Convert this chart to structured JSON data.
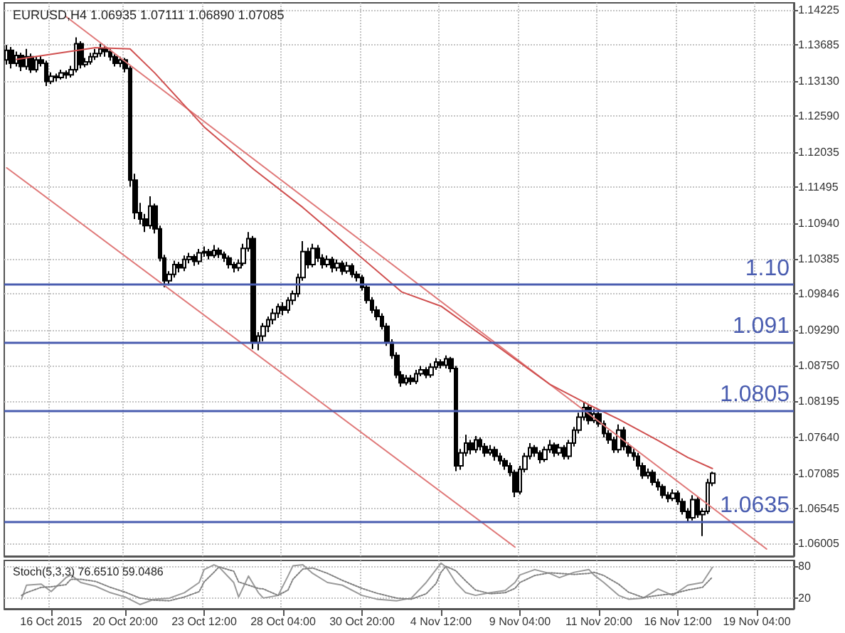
{
  "chart_data": [
    {
      "type": "candlestick",
      "title": "EURUSD,H4 1.06935 1.07111 1.06890 1.07085",
      "color": "#000000",
      "ohlc": [
        [
          1.1345,
          1.1368,
          1.1338,
          1.136
        ],
        [
          1.136,
          1.1365,
          1.1332,
          1.134
        ],
        [
          1.134,
          1.1358,
          1.1335,
          1.1352
        ],
        [
          1.1352,
          1.1356,
          1.1328,
          1.1335
        ],
        [
          1.1335,
          1.1362,
          1.133,
          1.135
        ],
        [
          1.135,
          1.1355,
          1.1325,
          1.133
        ],
        [
          1.133,
          1.135,
          1.1326,
          1.1345
        ],
        [
          1.1345,
          1.1352,
          1.1335,
          1.134
        ],
        [
          1.134,
          1.1344,
          1.1305,
          1.1312
        ],
        [
          1.1312,
          1.1326,
          1.1308,
          1.132
        ],
        [
          1.132,
          1.1324,
          1.1312,
          1.1318
        ],
        [
          1.1318,
          1.133,
          1.1315,
          1.1325
        ],
        [
          1.1325,
          1.1329,
          1.1316,
          1.1322
        ],
        [
          1.1322,
          1.1336,
          1.1318,
          1.133
        ],
        [
          1.133,
          1.138,
          1.1326,
          1.137
        ],
        [
          1.137,
          1.1374,
          1.1332,
          1.1338
        ],
        [
          1.1338,
          1.1348,
          1.1334,
          1.1342
        ],
        [
          1.1342,
          1.1356,
          1.1338,
          1.135
        ],
        [
          1.135,
          1.1362,
          1.1345,
          1.1355
        ],
        [
          1.1355,
          1.137,
          1.135,
          1.1362
        ],
        [
          1.1362,
          1.1366,
          1.135,
          1.1358
        ],
        [
          1.1358,
          1.1362,
          1.1344,
          1.135
        ],
        [
          1.135,
          1.1354,
          1.1335,
          1.134
        ],
        [
          1.134,
          1.135,
          1.1334,
          1.1345
        ],
        [
          1.1345,
          1.1348,
          1.1326,
          1.1332
        ],
        [
          1.1332,
          1.1336,
          1.115,
          1.116
        ],
        [
          1.116,
          1.117,
          1.11,
          1.111
        ],
        [
          1.111,
          1.1125,
          1.1092,
          1.11
        ],
        [
          1.11,
          1.1108,
          1.108,
          1.109
        ],
        [
          1.109,
          1.1135,
          1.1085,
          1.112
        ],
        [
          1.112,
          1.1124,
          1.1078,
          1.1085
        ],
        [
          1.1085,
          1.109,
          1.1035,
          1.104
        ],
        [
          1.104,
          1.1045,
          1.0995,
          1.1005
        ],
        [
          1.1005,
          1.102,
          1.0998,
          1.1015
        ],
        [
          1.1015,
          1.1036,
          1.101,
          1.103
        ],
        [
          1.103,
          1.1034,
          1.1018,
          1.1025
        ],
        [
          1.1025,
          1.1044,
          1.102,
          1.1038
        ],
        [
          1.1038,
          1.1048,
          1.1032,
          1.1042
        ],
        [
          1.1042,
          1.1046,
          1.1028,
          1.1035
        ],
        [
          1.1035,
          1.1054,
          1.103,
          1.1048
        ],
        [
          1.1048,
          1.1058,
          1.1042,
          1.105
        ],
        [
          1.105,
          1.1054,
          1.1038,
          1.1044
        ],
        [
          1.1044,
          1.106,
          1.104,
          1.1052
        ],
        [
          1.1052,
          1.1056,
          1.104,
          1.1046
        ],
        [
          1.1046,
          1.105,
          1.1034,
          1.104
        ],
        [
          1.104,
          1.1044,
          1.1024,
          1.103
        ],
        [
          1.103,
          1.1034,
          1.1018,
          1.1025
        ],
        [
          1.1025,
          1.1038,
          1.102,
          1.1032
        ],
        [
          1.1032,
          1.1062,
          1.1028,
          1.1055
        ],
        [
          1.1055,
          1.108,
          1.105,
          1.107
        ],
        [
          1.107,
          1.1074,
          1.09,
          1.091
        ],
        [
          1.091,
          1.0926,
          1.0898,
          1.092
        ],
        [
          1.092,
          1.094,
          1.0912,
          1.0935
        ],
        [
          1.0935,
          1.095,
          1.0926,
          1.0945
        ],
        [
          1.0945,
          1.0962,
          1.0938,
          1.0955
        ],
        [
          1.0955,
          1.097,
          1.0948,
          1.0965
        ],
        [
          1.0965,
          1.0972,
          1.0952,
          1.096
        ],
        [
          1.096,
          1.098,
          1.0955,
          1.0975
        ],
        [
          1.0975,
          1.099,
          1.0968,
          1.0985
        ],
        [
          1.0985,
          1.1016,
          1.098,
          1.101
        ],
        [
          1.101,
          1.1066,
          1.1005,
          1.105
        ],
        [
          1.105,
          1.1056,
          1.1024,
          1.103
        ],
        [
          1.103,
          1.1062,
          1.1026,
          1.1055
        ],
        [
          1.1055,
          1.106,
          1.1034,
          1.104
        ],
        [
          1.104,
          1.1046,
          1.1024,
          1.103
        ],
        [
          1.103,
          1.1044,
          1.1026,
          1.1038
        ],
        [
          1.1038,
          1.1042,
          1.1018,
          1.1025
        ],
        [
          1.1025,
          1.1038,
          1.102,
          1.1032
        ],
        [
          1.1032,
          1.1036,
          1.1014,
          1.102
        ],
        [
          1.102,
          1.1034,
          1.1016,
          1.1028
        ],
        [
          1.1028,
          1.1032,
          1.101,
          1.1015
        ],
        [
          1.1015,
          1.102,
          1.1004,
          1.101
        ],
        [
          1.101,
          1.1014,
          1.099,
          1.0995
        ],
        [
          1.0995,
          1.1,
          1.097,
          1.0975
        ],
        [
          1.0975,
          1.098,
          1.0955,
          1.096
        ],
        [
          1.096,
          1.0966,
          1.0944,
          1.095
        ],
        [
          1.095,
          1.0955,
          1.093,
          1.0935
        ],
        [
          1.0935,
          1.094,
          1.0905,
          1.091
        ],
        [
          1.091,
          1.0915,
          1.0885,
          1.089
        ],
        [
          1.089,
          1.0895,
          1.0855,
          1.086
        ],
        [
          1.086,
          1.0866,
          1.0842,
          1.0848
        ],
        [
          1.0848,
          1.086,
          1.0844,
          1.0855
        ],
        [
          1.0855,
          1.086,
          1.0845,
          1.085
        ],
        [
          1.085,
          1.0868,
          1.0846,
          1.0862
        ],
        [
          1.0862,
          1.0874,
          1.0858,
          1.0868
        ],
        [
          1.0868,
          1.0872,
          1.0855,
          1.086
        ],
        [
          1.086,
          1.0878,
          1.0856,
          1.0872
        ],
        [
          1.0872,
          1.0886,
          1.0868,
          1.088
        ],
        [
          1.088,
          1.0884,
          1.087,
          1.0875
        ],
        [
          1.0875,
          1.089,
          1.087,
          1.0885
        ],
        [
          1.0885,
          1.0888,
          1.0864,
          1.087
        ],
        [
          1.087,
          1.0874,
          1.0712,
          1.072
        ],
        [
          1.072,
          1.0746,
          1.0714,
          1.074
        ],
        [
          1.074,
          1.0768,
          1.0735,
          1.0755
        ],
        [
          1.0755,
          1.076,
          1.0738,
          1.0745
        ],
        [
          1.0745,
          1.0766,
          1.074,
          1.076
        ],
        [
          1.076,
          1.0764,
          1.0744,
          1.075
        ],
        [
          1.075,
          1.0755,
          1.0734,
          1.074
        ],
        [
          1.074,
          1.0752,
          1.0736,
          1.0745
        ],
        [
          1.0745,
          1.075,
          1.0728,
          1.0735
        ],
        [
          1.0735,
          1.074,
          1.0722,
          1.0728
        ],
        [
          1.0728,
          1.0732,
          1.0714,
          1.072
        ],
        [
          1.072,
          1.0725,
          1.0704,
          1.071
        ],
        [
          1.071,
          1.0714,
          1.0672,
          1.068
        ],
        [
          1.068,
          1.072,
          1.0676,
          1.0715
        ],
        [
          1.0715,
          1.074,
          1.071,
          1.0735
        ],
        [
          1.0735,
          1.0755,
          1.073,
          1.0748
        ],
        [
          1.0748,
          1.0752,
          1.0734,
          1.074
        ],
        [
          1.074,
          1.0744,
          1.0724,
          1.073
        ],
        [
          1.073,
          1.075,
          1.0726,
          1.0745
        ],
        [
          1.0745,
          1.076,
          1.074,
          1.0752
        ],
        [
          1.0752,
          1.0756,
          1.0734,
          1.074
        ],
        [
          1.074,
          1.0754,
          1.0736,
          1.0748
        ],
        [
          1.0748,
          1.0752,
          1.073,
          1.0735
        ],
        [
          1.0735,
          1.076,
          1.073,
          1.0755
        ],
        [
          1.0755,
          1.078,
          1.075,
          1.0775
        ],
        [
          1.0775,
          1.0802,
          1.077,
          1.0795
        ],
        [
          1.0795,
          1.0818,
          1.079,
          1.081
        ],
        [
          1.081,
          1.0814,
          1.0784,
          1.079
        ],
        [
          1.079,
          1.0808,
          1.0786,
          1.08
        ],
        [
          1.08,
          1.0806,
          1.078,
          1.0785
        ],
        [
          1.0785,
          1.079,
          1.0764,
          1.077
        ],
        [
          1.077,
          1.0775,
          1.0754,
          1.076
        ],
        [
          1.076,
          1.0765,
          1.074,
          1.0745
        ],
        [
          1.0745,
          1.0784,
          1.074,
          1.0775
        ],
        [
          1.0775,
          1.078,
          1.0744,
          1.075
        ],
        [
          1.075,
          1.0756,
          1.0734,
          1.074
        ],
        [
          1.074,
          1.0746,
          1.0728,
          1.0735
        ],
        [
          1.0735,
          1.074,
          1.0714,
          1.072
        ],
        [
          1.072,
          1.0725,
          1.07,
          1.0705
        ],
        [
          1.0705,
          1.0716,
          1.07,
          1.071
        ],
        [
          1.071,
          1.0714,
          1.069,
          1.0695
        ],
        [
          1.0695,
          1.07,
          1.0682,
          1.0688
        ],
        [
          1.0688,
          1.0692,
          1.067,
          1.0675
        ],
        [
          1.0675,
          1.068,
          1.0664,
          1.067
        ],
        [
          1.067,
          1.0684,
          1.0666,
          1.0678
        ],
        [
          1.0678,
          1.0682,
          1.066,
          1.0665
        ],
        [
          1.0665,
          1.067,
          1.0645,
          1.065
        ],
        [
          1.065,
          1.0655,
          1.0634,
          1.064
        ],
        [
          1.064,
          1.0675,
          1.0636,
          1.0668
        ],
        [
          1.0668,
          1.0672,
          1.064,
          1.0645
        ],
        [
          1.0645,
          1.0655,
          1.0612,
          1.065
        ],
        [
          1.065,
          1.07,
          1.0646,
          1.0694
        ],
        [
          1.06935,
          1.07111,
          1.0689,
          1.07085
        ],
        null,
        null,
        null,
        null,
        null,
        null,
        null,
        null,
        null,
        null,
        null,
        null,
        null,
        null,
        null,
        null
      ],
      "series": [
        {
          "type": "line",
          "color": "#e07a7a",
          "values": [
            null,
            null,
            null,
            null,
            null,
            null,
            null,
            null,
            null,
            null,
            null,
            null,
            1.1412,
            null,
            null,
            null,
            null,
            null,
            null,
            null,
            null,
            null,
            null,
            null,
            null,
            null,
            null,
            null,
            null,
            null,
            null,
            null,
            null,
            null,
            null,
            null,
            null,
            null,
            null,
            null,
            null,
            null,
            null,
            null,
            null,
            null,
            null,
            null,
            null,
            null,
            null,
            null,
            null,
            null,
            null,
            null,
            null,
            null,
            null,
            null,
            null,
            null,
            null,
            null,
            null,
            null,
            null,
            null,
            null,
            null,
            null,
            null,
            null,
            null,
            null,
            null,
            null,
            null,
            null,
            null,
            null,
            null,
            null,
            null,
            null,
            null,
            null,
            null,
            null,
            null,
            null,
            null,
            null,
            null,
            null,
            null,
            null,
            null,
            null,
            null,
            null,
            null,
            null,
            null,
            null,
            null,
            null,
            null,
            null,
            null,
            null,
            null,
            null,
            null,
            null,
            null,
            null,
            null,
            null,
            null,
            null,
            null,
            null,
            null,
            null,
            null,
            null,
            null,
            null,
            null,
            null,
            null,
            null,
            null,
            null,
            null,
            null,
            null,
            null,
            null,
            null,
            null,
            null,
            null,
            null,
            null,
            null,
            null,
            null,
            null,
            null,
            null,
            null,
            null,
            1.0592,
            null,
            null,
            null,
            null,
            null
          ]
        },
        {
          "type": "line",
          "color": "#e07a7a",
          "values": [
            1.1179,
            null,
            null,
            null,
            null,
            null,
            null,
            null,
            null,
            null,
            null,
            null,
            null,
            null,
            null,
            null,
            null,
            null,
            null,
            null,
            null,
            null,
            null,
            null,
            null,
            null,
            null,
            null,
            null,
            null,
            null,
            null,
            null,
            null,
            null,
            null,
            null,
            null,
            null,
            null,
            null,
            null,
            null,
            null,
            null,
            null,
            null,
            null,
            null,
            null,
            null,
            null,
            null,
            null,
            null,
            null,
            null,
            null,
            null,
            null,
            null,
            null,
            null,
            null,
            null,
            null,
            null,
            null,
            null,
            null,
            null,
            null,
            null,
            null,
            null,
            null,
            null,
            null,
            null,
            null,
            null,
            null,
            null,
            null,
            null,
            null,
            null,
            null,
            null,
            null,
            null,
            null,
            null,
            null,
            null,
            null,
            null,
            null,
            null,
            null,
            null,
            null,
            null,
            1.0595,
            null,
            null,
            null,
            null,
            null,
            null,
            null,
            null,
            null,
            null,
            null,
            null,
            null,
            null,
            null,
            null,
            null,
            null,
            null,
            null,
            null,
            null,
            null,
            null,
            null,
            null,
            null,
            null,
            null,
            null,
            null,
            null,
            null,
            null,
            null,
            null,
            null,
            null,
            null,
            null,
            null,
            null,
            null,
            null,
            null,
            null,
            null,
            null,
            null,
            null,
            null,
            null,
            null,
            null,
            null,
            null
          ]
        },
        {
          "type": "line",
          "color": "#d05050",
          "values": [
            null,
            null,
            1.1346,
            null,
            null,
            null,
            null,
            null,
            null,
            null,
            1.1355,
            null,
            null,
            null,
            null,
            null,
            null,
            null,
            1.1364,
            null,
            null,
            null,
            null,
            null,
            null,
            1.1362,
            null,
            null,
            null,
            null,
            1.1325,
            null,
            null,
            null,
            null,
            null,
            null,
            null,
            null,
            null,
            1.1242,
            null,
            null,
            null,
            null,
            null,
            null,
            null,
            null,
            null,
            1.1177,
            null,
            null,
            null,
            null,
            null,
            null,
            null,
            null,
            null,
            1.1118,
            null,
            null,
            null,
            null,
            null,
            null,
            null,
            null,
            null,
            1.1053,
            null,
            null,
            null,
            null,
            null,
            null,
            null,
            null,
            null,
            1.0988,
            null,
            null,
            null,
            null,
            null,
            null,
            null,
            1.0966,
            null,
            null,
            null,
            null,
            null,
            null,
            null,
            null,
            null,
            null,
            null,
            1.0901,
            null,
            null,
            null,
            null,
            null,
            null,
            null,
            null,
            null,
            1.0846,
            null,
            null,
            null,
            null,
            null,
            null,
            null,
            1.0814,
            null,
            null,
            null,
            null,
            null,
            1.0792,
            null,
            null,
            null,
            null,
            null,
            null,
            null,
            1.0759,
            null,
            null,
            null,
            null,
            null,
            1.0733,
            null,
            null,
            null,
            null,
            1.0716,
            null,
            null,
            null,
            null,
            null,
            null,
            null,
            null,
            null,
            null,
            null,
            null,
            null,
            null,
            null,
            null
          ]
        }
      ],
      "marker": "none",
      "categories": [
        null,
        null,
        null,
        null,
        null,
        null,
        null,
        null,
        null,
        null,
        null,
        null,
        null,
        null,
        null,
        null,
        null,
        null,
        null,
        null,
        null,
        null,
        null,
        null,
        null,
        null,
        null,
        null,
        null,
        null,
        null,
        null,
        null,
        null,
        null,
        null,
        null,
        null,
        null,
        null,
        null,
        null,
        null,
        null,
        null,
        null,
        null,
        null,
        null,
        null,
        null,
        null,
        null,
        null,
        null,
        null,
        null,
        null,
        null,
        null,
        null,
        null,
        null,
        null,
        null,
        null,
        null,
        null,
        null,
        null,
        null,
        null,
        null,
        null,
        null,
        null,
        null,
        null,
        null,
        null,
        null,
        null,
        null,
        null,
        null,
        null,
        null,
        null,
        null,
        null,
        null,
        null,
        null,
        null,
        null,
        null,
        null,
        null,
        null,
        null,
        null,
        null,
        null,
        null,
        null,
        null,
        null,
        null,
        null,
        null,
        null,
        null,
        null,
        null,
        null,
        null,
        null,
        null,
        null,
        null,
        null,
        null,
        null,
        null,
        null,
        null,
        null,
        null,
        null,
        null,
        null,
        null,
        null,
        null,
        null,
        null,
        null,
        null,
        null,
        null,
        null,
        null,
        null,
        null,
        null,
        null,
        null,
        null,
        null,
        null,
        null,
        null,
        null,
        null,
        null,
        null,
        null,
        null,
        null,
        null
      ],
      "ylim": [
        1.0581,
        1.1433
      ],
      "yticks": [
        1.14225,
        1.13685,
        {
          "value": 1.1313,
          "label": "1.13130"
        },
        {
          "value": 1.1259,
          "label": "1.12590"
        },
        1.12035,
        1.11495,
        {
          "value": 1.1094,
          "label": "1.10940"
        },
        1.10385,
        1.09846,
        {
          "value": 1.0929,
          "label": "1.09290"
        },
        {
          "value": 1.0875,
          "label": "1.08750"
        },
        1.08195,
        {
          "value": 1.0764,
          "label": "1.07640"
        },
        1.07085,
        1.06545,
        1.06005
      ],
      "tick_labels": "y",
      "grid": true,
      "ref_lines": [
        {
          "axis": "y",
          "value": 1.09996,
          "label": "1.10",
          "color": "#4a5db0"
        },
        {
          "axis": "y",
          "value": 1.09102,
          "label": "1.091",
          "color": "#4a5db0"
        },
        {
          "axis": "y",
          "value": 1.08053,
          "label": "1.0805",
          "color": "#4a5db0"
        },
        {
          "axis": "y",
          "value": 1.06352,
          "label": "1.0635",
          "color": "#4a5db0"
        }
      ]
    },
    {
      "type": "line",
      "title": "Stoch(5,3,3) 76.6510 59.0486",
      "marker": "none",
      "grid": true,
      "series": [
        {
          "color": "#9a9a9a",
          "line_style": "solid",
          "values": [
            null,
            null,
            null,
            18,
            44,
            null,
            null,
            46,
            null,
            32,
            null,
            null,
            58,
            63,
            null,
            49,
            null,
            null,
            42,
            null,
            null,
            30,
            null,
            null,
            22,
            null,
            null,
            8,
            null,
            null,
            18,
            null,
            null,
            20,
            null,
            null,
            30,
            null,
            null,
            49,
            73,
            null,
            82,
            78,
            null,
            null,
            49,
            22,
            null,
            61,
            null,
            30,
            20,
            null,
            null,
            25,
            null,
            61,
            80,
            null,
            82,
            null,
            66,
            null,
            null,
            49,
            null,
            null,
            44,
            null,
            null,
            null,
            25,
            null,
            null,
            18,
            null,
            null,
            null,
            15,
            null,
            null,
            20,
            null,
            null,
            49,
            null,
            73,
            85,
            78,
            null,
            49,
            null,
            30,
            null,
            25,
            null,
            null,
            30,
            null,
            null,
            34,
            null,
            49,
            63,
            null,
            null,
            73,
            null,
            null,
            66,
            null,
            58,
            null,
            null,
            68,
            null,
            null,
            73,
            63,
            null,
            49,
            null,
            null,
            25,
            null,
            18,
            null,
            null,
            20,
            null,
            null,
            37,
            null,
            null,
            25,
            null,
            null,
            44,
            null,
            null,
            49,
            null,
            77,
            null,
            null,
            null,
            null,
            null,
            null,
            null,
            null,
            null,
            null,
            null,
            null,
            null,
            null,
            null,
            null
          ]
        },
        {
          "color": "#808080",
          "line_style": "dotted",
          "values": [
            null,
            null,
            null,
            25,
            30,
            null,
            null,
            40,
            null,
            41,
            null,
            null,
            45,
            55,
            null,
            55,
            null,
            null,
            51,
            null,
            null,
            40,
            null,
            null,
            31,
            null,
            null,
            20,
            null,
            null,
            16,
            null,
            null,
            15,
            null,
            null,
            22,
            null,
            null,
            32,
            50,
            null,
            68,
            78,
            null,
            null,
            70,
            50,
            null,
            44,
            null,
            38,
            37,
            null,
            null,
            25,
            null,
            35,
            55,
            null,
            74,
            null,
            76,
            null,
            null,
            66,
            null,
            null,
            53,
            null,
            null,
            null,
            38,
            null,
            null,
            29,
            null,
            null,
            null,
            20,
            null,
            null,
            18,
            null,
            null,
            28,
            null,
            47,
            68,
            79,
            null,
            71,
            null,
            52,
            null,
            35,
            null,
            null,
            28,
            null,
            null,
            30,
            null,
            38,
            49,
            null,
            null,
            62,
            null,
            null,
            67,
            null,
            66,
            null,
            null,
            64,
            null,
            null,
            66,
            68,
            null,
            62,
            null,
            null,
            46,
            null,
            31,
            null,
            null,
            21,
            null,
            null,
            25,
            null,
            null,
            28,
            null,
            null,
            35,
            null,
            null,
            40,
            null,
            59,
            null,
            null,
            null,
            null,
            null,
            null,
            null,
            null,
            null,
            null,
            null,
            null,
            null,
            null,
            null,
            null
          ]
        }
      ],
      "categories": [
        null,
        null,
        null,
        null,
        null,
        null,
        null,
        null,
        null,
        "16 Oct 2015",
        null,
        null,
        null,
        null,
        null,
        null,
        null,
        null,
        null,
        null,
        null,
        null,
        null,
        null,
        "20 Oct 20:00",
        null,
        null,
        null,
        null,
        null,
        null,
        null,
        null,
        null,
        null,
        null,
        null,
        null,
        null,
        null,
        "23 Oct 12:00",
        null,
        null,
        null,
        null,
        null,
        null,
        null,
        null,
        null,
        null,
        null,
        null,
        null,
        null,
        null,
        "28 Oct 04:00",
        null,
        null,
        null,
        null,
        null,
        null,
        null,
        null,
        null,
        null,
        null,
        null,
        null,
        null,
        null,
        "30 Oct 20:00",
        null,
        null,
        null,
        null,
        null,
        null,
        null,
        null,
        null,
        null,
        null,
        null,
        null,
        null,
        null,
        "4 Nov 12:00",
        null,
        null,
        null,
        null,
        null,
        null,
        null,
        null,
        null,
        null,
        null,
        null,
        null,
        null,
        null,
        "9 Nov 04:00",
        null,
        null,
        null,
        null,
        null,
        null,
        null,
        null,
        null,
        null,
        null,
        null,
        null,
        null,
        null,
        "11 Nov 20:00",
        null,
        null,
        null,
        null,
        null,
        null,
        null,
        null,
        null,
        null,
        null,
        null,
        null,
        null,
        null,
        "16 Nov 12:00",
        null,
        null,
        null,
        null,
        null,
        null,
        null,
        null,
        null,
        null,
        null,
        null,
        null,
        null,
        null,
        "19 Nov 04:00",
        null,
        null,
        null,
        null,
        null,
        null,
        null
      ],
      "ylim": [
        0,
        90
      ],
      "yticks": [
        20,
        80
      ]
    }
  ]
}
